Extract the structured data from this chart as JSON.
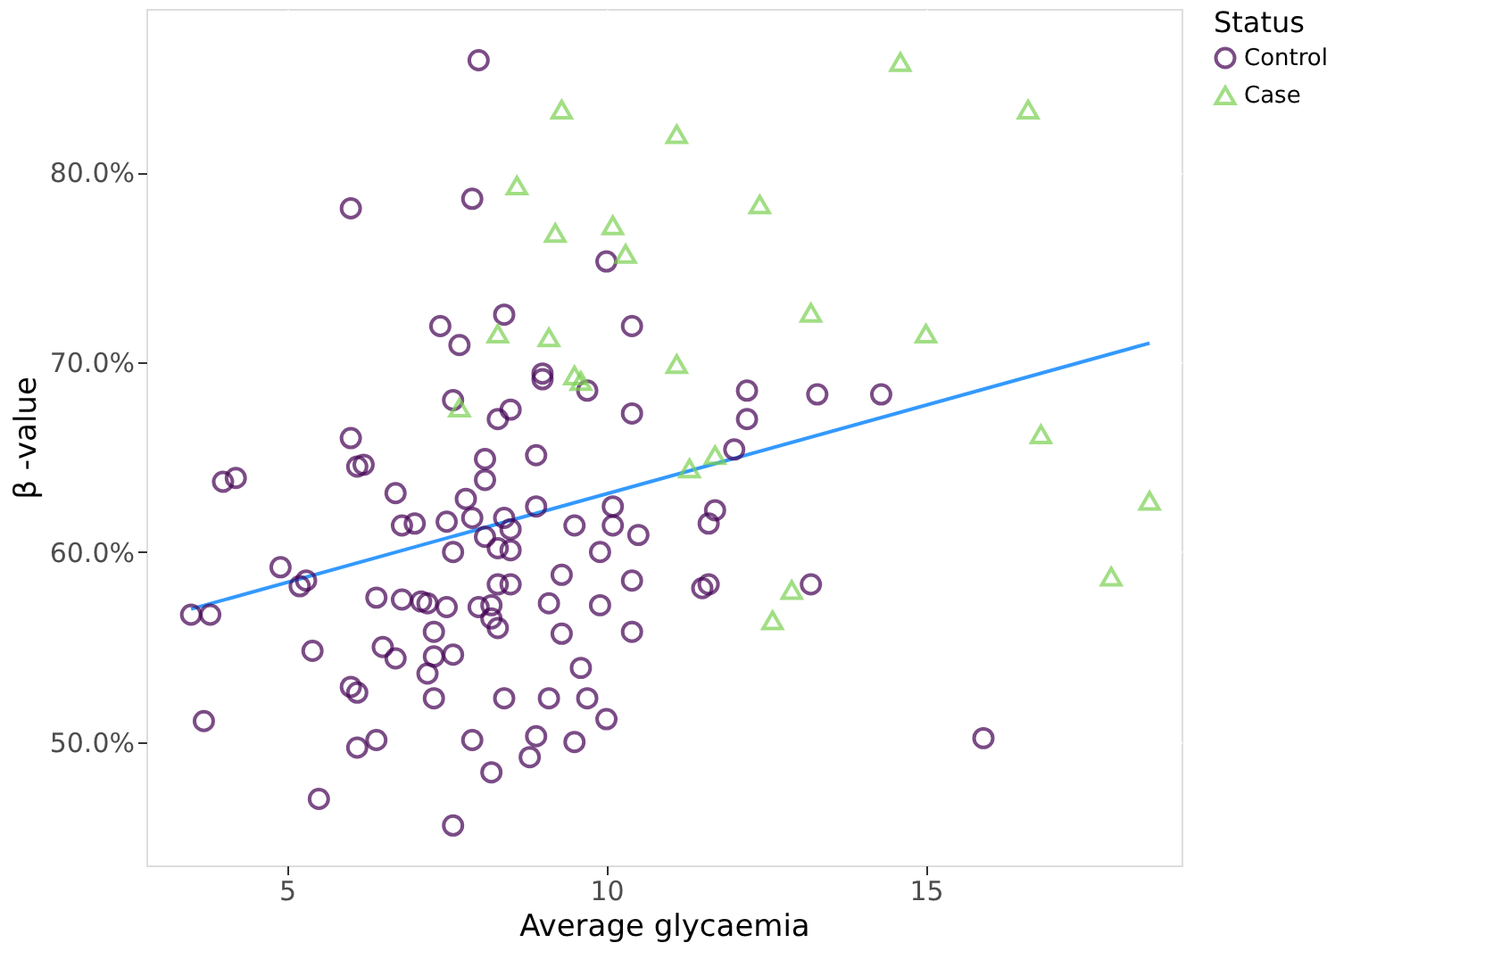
{
  "chart_data": {
    "type": "scatter",
    "xlabel": "Average glycaemia",
    "ylabel": "β -value",
    "legend_title": "Status",
    "legend": "right",
    "grid": true,
    "xlim": [
      2.8,
      19.0
    ],
    "xticks": [
      5,
      10,
      15
    ],
    "ylim": [
      43.5,
      88.6
    ],
    "yticks": [
      {
        "value": 50,
        "label": "50.0%"
      },
      {
        "value": 60,
        "label": "60.0%"
      },
      {
        "value": 70,
        "label": "70.0%"
      },
      {
        "value": 80,
        "label": "80.0%"
      }
    ],
    "series": [
      {
        "name": "Control",
        "color": "#440154",
        "marker": "circle",
        "x": [
          8.0,
          6.0,
          7.9,
          10.0,
          8.4,
          7.4,
          7.7,
          10.4,
          9.0,
          9.0,
          9.7,
          7.6,
          8.5,
          8.3,
          10.4,
          12.2,
          12.2,
          13.3,
          14.3,
          6.0,
          8.1,
          8.9,
          12.0,
          6.1,
          6.2,
          4.0,
          4.2,
          6.7,
          8.1,
          10.1,
          7.8,
          8.9,
          6.8,
          7.0,
          7.5,
          7.9,
          8.4,
          8.5,
          9.5,
          10.1,
          10.5,
          11.6,
          11.7,
          8.1,
          7.6,
          8.3,
          8.5,
          9.9,
          4.9,
          5.2,
          5.3,
          9.3,
          8.3,
          8.5,
          10.4,
          11.5,
          11.6,
          13.2,
          6.4,
          6.8,
          7.1,
          7.2,
          7.5,
          8.0,
          8.2,
          9.1,
          9.9,
          3.5,
          3.8,
          8.2,
          8.3,
          7.3,
          9.3,
          10.4,
          5.4,
          6.5,
          6.7,
          7.3,
          7.6,
          9.6,
          7.2,
          8.4,
          9.1,
          9.7,
          6.0,
          6.1,
          7.3,
          3.7,
          10.0,
          6.1,
          6.4,
          7.9,
          8.9,
          9.5,
          8.8,
          15.9,
          5.5,
          8.2,
          7.6
        ],
        "values": [
          85.9,
          78.1,
          78.6,
          75.3,
          72.5,
          71.9,
          70.9,
          71.9,
          69.4,
          69.1,
          68.5,
          68.0,
          67.5,
          67.0,
          67.3,
          68.5,
          67.0,
          68.3,
          68.3,
          66.0,
          64.9,
          65.1,
          65.4,
          64.5,
          64.6,
          63.7,
          63.9,
          63.1,
          63.8,
          62.4,
          62.8,
          62.4,
          61.4,
          61.5,
          61.6,
          61.8,
          61.8,
          61.2,
          61.4,
          61.4,
          60.9,
          61.5,
          62.2,
          60.8,
          60.0,
          60.2,
          60.1,
          60.0,
          59.2,
          58.2,
          58.5,
          58.8,
          58.3,
          58.3,
          58.5,
          58.1,
          58.3,
          58.3,
          57.6,
          57.5,
          57.4,
          57.3,
          57.1,
          57.1,
          57.2,
          57.3,
          57.2,
          56.7,
          56.7,
          56.5,
          56.0,
          55.8,
          55.7,
          55.8,
          54.8,
          55.0,
          54.4,
          54.5,
          54.6,
          53.9,
          53.6,
          52.3,
          52.3,
          52.3,
          52.9,
          52.6,
          52.3,
          51.1,
          51.2,
          49.7,
          50.1,
          50.1,
          50.3,
          50.0,
          49.2,
          50.2,
          47.0,
          48.4,
          45.6
        ]
      },
      {
        "name": "Case",
        "color": "#7ad151",
        "marker": "triangle",
        "x": [
          9.3,
          11.1,
          8.6,
          12.4,
          9.2,
          10.1,
          10.3,
          13.2,
          8.3,
          9.1,
          11.1,
          9.5,
          9.6,
          7.7,
          11.3,
          11.7,
          12.9,
          12.6,
          14.6,
          16.6,
          15.0,
          16.8,
          18.5,
          17.9
        ],
        "values": [
          83.3,
          82.0,
          79.3,
          78.3,
          76.8,
          77.2,
          75.7,
          72.6,
          71.5,
          71.3,
          69.9,
          69.3,
          69.0,
          67.6,
          64.4,
          65.1,
          58.0,
          56.4,
          85.8,
          83.3,
          71.5,
          66.2,
          62.7,
          58.7
        ]
      },
      {
        "type": "line",
        "color": "#3399ff",
        "x": [
          3.5,
          18.5
        ],
        "values": [
          57.0,
          71.0
        ]
      }
    ]
  }
}
